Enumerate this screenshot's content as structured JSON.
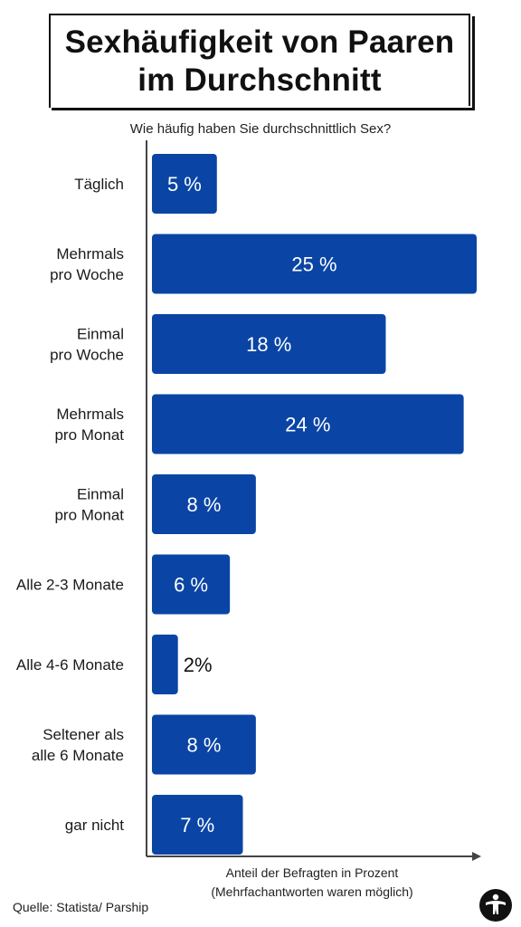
{
  "title": {
    "line1": "Sexhäufigkeit von Paaren",
    "line2": "im Durchschnitt"
  },
  "question": "Wie häufig haben Sie durchschnittlich Sex?",
  "axis_note": {
    "line1": "Anteil der Befragten in Prozent",
    "line2": "(Mehrfachantworten waren möglich)"
  },
  "source": "Quelle: Statista/ Parship",
  "colors": {
    "bar": "#0a45a5",
    "text_on_bar": "#ffffff",
    "text_outside": "#111111",
    "axis": "#444444"
  },
  "logo_icon": "figure-emblem-icon",
  "chart_data": {
    "type": "bar",
    "orientation": "horizontal",
    "title": "Sexhäufigkeit von Paaren im Durchschnitt",
    "subtitle": "Wie häufig haben Sie durchschnittlich Sex?",
    "xlabel": "Anteil der Befragten in Prozent (Mehrfachantworten waren möglich)",
    "ylabel": "",
    "xlim": [
      0,
      25
    ],
    "grid": false,
    "categories": [
      [
        "Täglich"
      ],
      [
        "Mehrmals",
        "pro Woche"
      ],
      [
        "Einmal",
        "pro Woche"
      ],
      [
        "Mehrmals",
        "pro Monat"
      ],
      [
        "Einmal",
        "pro Monat"
      ],
      [
        "Alle 2-3 Monate"
      ],
      [
        "Alle 4-6 Monate"
      ],
      [
        "Seltener als",
        "alle 6 Monate"
      ],
      [
        "gar nicht"
      ]
    ],
    "values": [
      5,
      25,
      18,
      24,
      8,
      6,
      2,
      8,
      7
    ],
    "value_labels": [
      "5 %",
      "25 %",
      "18 %",
      "24 %",
      "8 %",
      "6 %",
      "2%",
      "8 %",
      "7 %"
    ]
  }
}
